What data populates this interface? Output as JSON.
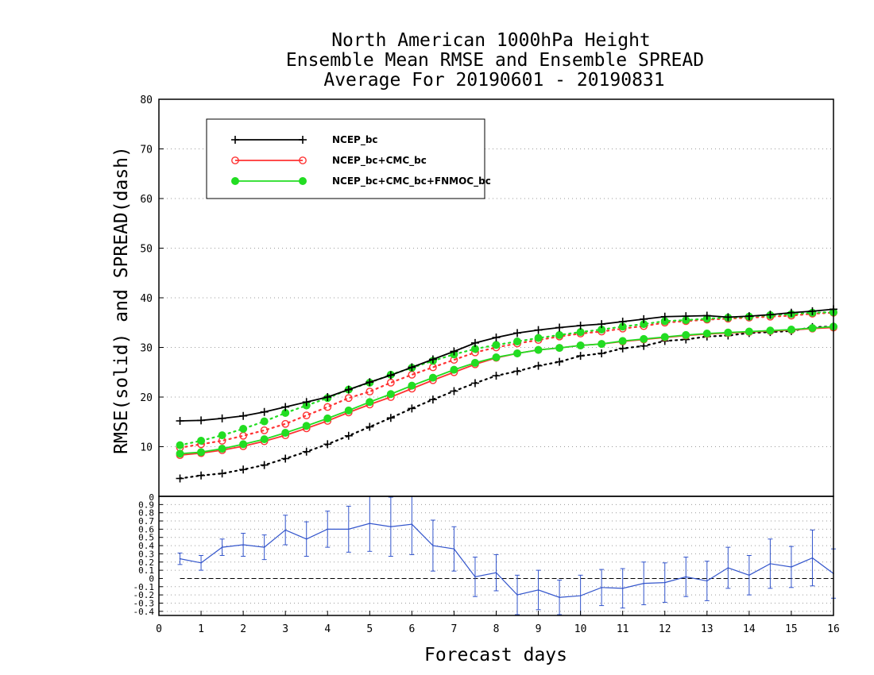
{
  "title_lines": [
    "North American 1000hPa Height",
    "Ensemble Mean RMSE and Ensemble SPREAD",
    "Average For 20190601 - 20190831"
  ],
  "chart_data": [
    {
      "type": "line",
      "ylabel": "RMSE(solid) and SPREAD(dash)",
      "xlim": [
        0,
        16
      ],
      "ylim": [
        0,
        80
      ],
      "yticks": [
        10,
        20,
        30,
        40,
        50,
        60,
        70,
        80
      ],
      "grid": true,
      "legend_position": "top-left",
      "x": [
        0.5,
        1,
        1.5,
        2,
        2.5,
        3,
        3.5,
        4,
        4.5,
        5,
        5.5,
        6,
        6.5,
        7,
        7.5,
        8,
        8.5,
        9,
        9.5,
        10,
        10.5,
        11,
        11.5,
        12,
        12.5,
        13,
        13.5,
        14,
        14.5,
        15,
        15.5,
        16
      ],
      "series": [
        {
          "name": "NCEP_bc",
          "metric": "RMSE",
          "color": "#000000",
          "marker": "plus",
          "values": [
            15.2,
            15.3,
            15.7,
            16.2,
            17.0,
            18.0,
            19.0,
            20.0,
            21.5,
            23.0,
            24.4,
            26.0,
            27.6,
            29.2,
            30.9,
            32.0,
            32.9,
            33.5,
            34.0,
            34.4,
            34.7,
            35.2,
            35.7,
            36.2,
            36.3,
            36.4,
            36.1,
            36.3,
            36.6,
            37.0,
            37.3,
            37.7
          ]
        },
        {
          "name": "NCEP_bc+CMC_bc",
          "metric": "RMSE",
          "color": "#ff3333",
          "marker": "open-circle",
          "values": [
            8.3,
            8.7,
            9.3,
            10.1,
            11.1,
            12.3,
            13.7,
            15.2,
            16.9,
            18.5,
            20.0,
            21.7,
            23.4,
            25.0,
            26.6,
            27.9,
            28.8,
            29.5,
            29.9,
            30.4,
            30.7,
            31.2,
            31.6,
            32.0,
            32.4,
            32.7,
            32.9,
            33.1,
            33.3,
            33.5,
            33.8,
            34.0
          ]
        },
        {
          "name": "NCEP_bc+CMC_bc+FNMOC_bc",
          "metric": "RMSE",
          "color": "#22dd22",
          "marker": "filled-circle",
          "values": [
            8.6,
            8.9,
            9.6,
            10.5,
            11.5,
            12.8,
            14.2,
            15.7,
            17.3,
            19.0,
            20.6,
            22.3,
            23.9,
            25.5,
            26.9,
            28.0,
            28.8,
            29.5,
            29.9,
            30.4,
            30.7,
            31.3,
            31.7,
            32.1,
            32.5,
            32.8,
            33.0,
            33.2,
            33.4,
            33.6,
            33.9,
            34.2
          ]
        },
        {
          "name": "NCEP_bc",
          "metric": "SPREAD",
          "color": "#000000",
          "marker": "plus",
          "values": [
            3.6,
            4.2,
            4.6,
            5.4,
            6.3,
            7.6,
            9.0,
            10.5,
            12.2,
            14.0,
            15.8,
            17.7,
            19.5,
            21.2,
            22.8,
            24.3,
            25.2,
            26.3,
            27.1,
            28.3,
            28.8,
            29.8,
            30.3,
            31.3,
            31.6,
            32.2,
            32.4,
            32.9,
            33.1,
            33.3,
            34.1,
            34.2
          ]
        },
        {
          "name": "NCEP_bc+CMC_bc",
          "metric": "SPREAD",
          "color": "#ff3333",
          "marker": "open-circle",
          "values": [
            9.8,
            10.5,
            11.2,
            12.2,
            13.3,
            14.6,
            16.3,
            18.0,
            19.8,
            21.1,
            22.9,
            24.5,
            26.0,
            27.5,
            29.0,
            30.0,
            30.8,
            31.5,
            32.2,
            32.8,
            33.2,
            33.8,
            34.3,
            35.0,
            35.3,
            35.6,
            35.8,
            36.0,
            36.2,
            36.4,
            36.8,
            37.0
          ]
        },
        {
          "name": "NCEP_bc+CMC_bc+FNMOC_bc",
          "metric": "SPREAD",
          "color": "#22dd22",
          "marker": "filled-circle",
          "values": [
            10.3,
            11.2,
            12.3,
            13.6,
            15.1,
            16.8,
            18.3,
            19.8,
            21.5,
            22.9,
            24.5,
            25.9,
            27.3,
            28.6,
            29.7,
            30.5,
            31.2,
            31.9,
            32.5,
            33.1,
            33.6,
            34.2,
            34.7,
            35.3,
            35.5,
            35.8,
            36.0,
            36.2,
            36.5,
            36.7,
            37.0,
            37.1
          ]
        }
      ]
    },
    {
      "type": "line",
      "xlabel": "Forecast days",
      "xlim": [
        0,
        16
      ],
      "xticks": [
        0,
        1,
        2,
        3,
        4,
        5,
        6,
        7,
        8,
        9,
        10,
        11,
        12,
        13,
        14,
        15,
        16
      ],
      "ylim": [
        -0.45,
        1.0
      ],
      "ytick_labels": [
        "0.9",
        "0.8",
        "0.7",
        "0.6",
        "0.5",
        "0.4",
        "0.3",
        "0.2",
        "0.1",
        "0",
        "-0.1",
        "-0.2",
        "-0.3",
        "-0.4"
      ],
      "top_label": "0",
      "grid": true,
      "color": "#3355cc",
      "x": [
        0.5,
        1,
        1.5,
        2,
        2.5,
        3,
        3.5,
        4,
        4.5,
        5,
        5.5,
        6,
        6.5,
        7,
        7.5,
        8,
        8.5,
        9,
        9.5,
        10,
        10.5,
        11,
        11.5,
        12,
        12.5,
        13,
        13.5,
        14,
        14.5,
        15,
        15.5,
        16
      ],
      "values": [
        0.24,
        0.19,
        0.38,
        0.41,
        0.38,
        0.59,
        0.48,
        0.6,
        0.6,
        0.67,
        0.63,
        0.66,
        0.4,
        0.36,
        0.02,
        0.07,
        -0.2,
        -0.14,
        -0.23,
        -0.21,
        -0.11,
        -0.12,
        -0.06,
        -0.05,
        0.02,
        -0.03,
        0.13,
        0.04,
        0.18,
        0.14,
        0.25,
        0.06
      ],
      "error": [
        0.07,
        0.09,
        0.1,
        0.14,
        0.15,
        0.18,
        0.21,
        0.22,
        0.28,
        0.34,
        0.36,
        0.37,
        0.31,
        0.27,
        0.24,
        0.22,
        0.24,
        0.24,
        0.21,
        0.25,
        0.22,
        0.24,
        0.26,
        0.24,
        0.24,
        0.24,
        0.25,
        0.24,
        0.3,
        0.25,
        0.34,
        0.3
      ]
    }
  ]
}
